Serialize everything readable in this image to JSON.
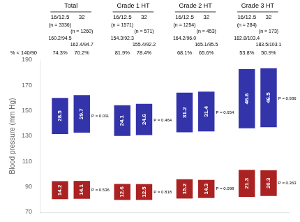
{
  "chart_data": {
    "type": "bar",
    "categories": [
      "Total",
      "Grade 1 HT",
      "Grade 2 HT",
      "Grade 3 HT"
    ],
    "ylabel": "Blood pressure (mm Hg)",
    "ylim": [
      70,
      190
    ],
    "yticks": [
      70,
      90,
      110,
      130,
      150,
      170,
      190
    ],
    "grid": false,
    "tick_labels": "y",
    "data_labels": true,
    "row_label": "% < 140/90",
    "series": [
      {
        "name": "16/12.5",
        "n": [
          "(n = 3336)",
          "(n = 1571)",
          "(n = 1254)",
          "(n = 284)"
        ],
        "baseline_bp": [
          "160.2/94.5",
          "154.3/92.3",
          "164.2/96.0",
          "182.8/103.4"
        ],
        "pct": [
          "74.3%",
          "81.9%",
          "68.1%",
          "53.8%"
        ],
        "systolic": {
          "color": "#3333aa",
          "baseline": [
            160.2,
            154.3,
            164.2,
            182.8
          ],
          "values": [
            28.5,
            24.1,
            31.2,
            46.6
          ]
        },
        "diastolic": {
          "color": "#aa2222",
          "baseline": [
            94.5,
            92.3,
            96.0,
            103.4
          ],
          "values": [
            14.2,
            12.6,
            15.2,
            21.3
          ]
        }
      },
      {
        "name": "32",
        "n": [
          "(n = 1260)",
          "(n = 571)",
          "(n = 453)",
          "(n = 173)"
        ],
        "baseline_bp": [
          "162.4/94.7",
          "155.4/92.2",
          "165.1/95.5",
          "183.5/103.1"
        ],
        "pct": [
          "70.2%",
          "78.4%",
          "65.6%",
          "50.9%"
        ],
        "systolic": {
          "color": "#3333aa",
          "baseline": [
            162.4,
            155.4,
            165.1,
            183.5
          ],
          "values": [
            29.7,
            24.6,
            31.4,
            46.5
          ]
        },
        "diastolic": {
          "color": "#aa2222",
          "baseline": [
            94.7,
            92.2,
            95.5,
            103.1
          ],
          "values": [
            14.1,
            12.5,
            14.3,
            20.3
          ]
        }
      }
    ],
    "p_systolic": [
      "P = 0.011",
      "P = 0.464",
      "P = 0.654",
      "P = 0.936"
    ],
    "p_diastolic": [
      "P = 0.536",
      "P = 0.818",
      "P = 0.098",
      "P = 0.363"
    ]
  }
}
